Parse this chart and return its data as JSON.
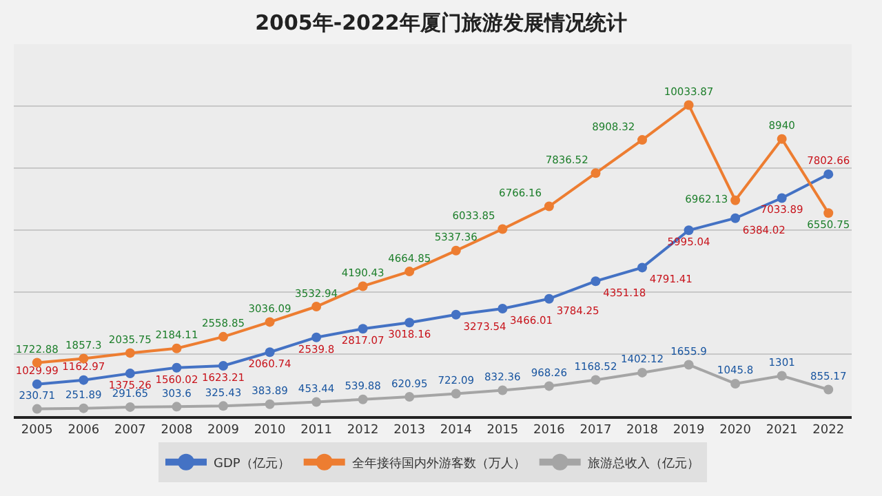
{
  "chart_data": {
    "type": "line",
    "title": "2005年-2022年厦门旅游发展情况统计",
    "categories": [
      "2005",
      "2006",
      "2007",
      "2008",
      "2009",
      "2010",
      "2011",
      "2012",
      "2013",
      "2014",
      "2015",
      "2016",
      "2017",
      "2018",
      "2019",
      "2020",
      "2021",
      "2022"
    ],
    "series": [
      {
        "name": "GDP（亿元）",
        "color": "#4472c4",
        "values": [
          1029.99,
          1162.97,
          1375.26,
          1560.02,
          1623.21,
          2060.74,
          2539.8,
          2817.07,
          3018.16,
          3273.54,
          3466.01,
          3784.25,
          4351.18,
          4791.41,
          5995.04,
          6384.02,
          7033.89,
          7802.66
        ]
      },
      {
        "name": "全年接待国内外游客数（万人）",
        "color": "#ed7d31",
        "values": [
          1722.88,
          1857.3,
          2035.75,
          2184.11,
          2558.85,
          3036.09,
          3532.94,
          4190.43,
          4664.85,
          5337.36,
          6033.85,
          6766.16,
          7836.52,
          8908.32,
          10033.87,
          6962.13,
          8940,
          6550.75
        ]
      },
      {
        "name": "旅游总收入（亿元）",
        "color": "#a5a5a5",
        "values": [
          230.71,
          251.89,
          291.65,
          303.6,
          325.43,
          383.89,
          453.44,
          539.88,
          620.95,
          722.09,
          832.36,
          968.26,
          1168.52,
          1402.12,
          1655.9,
          1045.8,
          1301,
          855.17
        ]
      }
    ],
    "ylim": [
      0,
      12000
    ],
    "yticks": [
      {
        "value": 0,
        "label": null
      },
      {
        "value": 2000,
        "label": null
      },
      {
        "value": 4000,
        "label": null
      },
      {
        "value": 6000,
        "label": null
      },
      {
        "value": 8000,
        "label": null
      },
      {
        "value": 10000,
        "label": null
      }
    ],
    "tick_labels": "x",
    "grid": "y",
    "legend": "bottom",
    "marker": "circle",
    "line_style": "solid",
    "data_labels": true
  }
}
